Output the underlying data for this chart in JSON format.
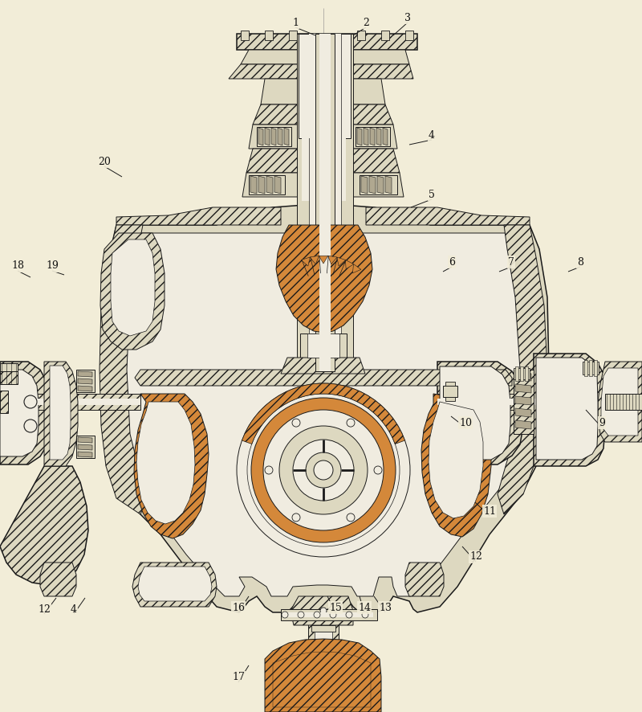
{
  "background_color": "#f2edd8",
  "line_color": "#1a1a1a",
  "orange_fill": "#d4883a",
  "light_fill": "#ddd8c0",
  "white_fill": "#f0ece0",
  "gray_fill": "#b0a890",
  "figsize": [
    8.0,
    8.86
  ],
  "dpi": 100,
  "labels": [
    [
      "1",
      368,
      28
    ],
    [
      "2",
      456,
      28
    ],
    [
      "3",
      510,
      25
    ],
    [
      "4",
      535,
      170
    ],
    [
      "5",
      535,
      245
    ],
    [
      "6",
      563,
      328
    ],
    [
      "7",
      635,
      328
    ],
    [
      "8",
      723,
      328
    ],
    [
      "9",
      748,
      528
    ],
    [
      "10",
      578,
      528
    ],
    [
      "11",
      608,
      638
    ],
    [
      "12",
      593,
      695
    ],
    [
      "13",
      478,
      758
    ],
    [
      "14",
      452,
      758
    ],
    [
      "15",
      418,
      758
    ],
    [
      "16",
      296,
      758
    ],
    [
      "17",
      296,
      843
    ],
    [
      "18",
      22,
      333
    ],
    [
      "19",
      65,
      333
    ],
    [
      "20",
      130,
      203
    ],
    [
      "4",
      90,
      760
    ],
    [
      "12",
      55,
      760
    ]
  ]
}
